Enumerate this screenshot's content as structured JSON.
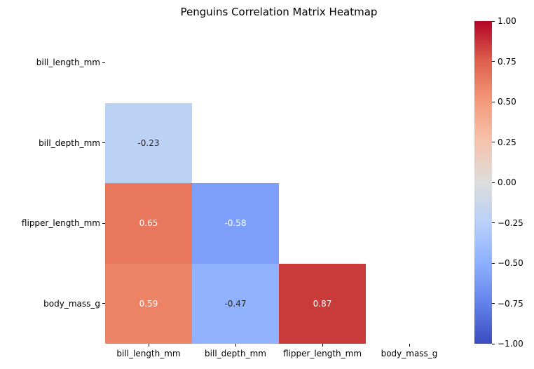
{
  "chart_data": {
    "type": "heatmap",
    "title": "Penguins Correlation Matrix Heatmap",
    "colormap": "coolwarm",
    "vmin": -1,
    "vmax": 1,
    "mask": "upper-triangle-and-diagonal",
    "grid": false,
    "variables": [
      "bill_length_mm",
      "bill_depth_mm",
      "flipper_length_mm",
      "body_mass_g"
    ],
    "matrix": [
      [
        null,
        null,
        null,
        null
      ],
      [
        -0.23,
        null,
        null,
        null
      ],
      [
        0.65,
        -0.58,
        null,
        null
      ],
      [
        0.59,
        -0.47,
        0.87,
        null
      ]
    ],
    "cells": [
      {
        "row": 1,
        "col": 0,
        "row_var": "bill_depth_mm",
        "col_var": "bill_length_mm",
        "value": -0.23,
        "label": "-0.23",
        "color": "#bcd2f4",
        "text_color": "#262626"
      },
      {
        "row": 2,
        "col": 0,
        "row_var": "flipper_length_mm",
        "col_var": "bill_length_mm",
        "value": 0.65,
        "label": "0.65",
        "color": "#e8775d",
        "text_color": "#ffffff"
      },
      {
        "row": 2,
        "col": 1,
        "row_var": "flipper_length_mm",
        "col_var": "bill_depth_mm",
        "value": -0.58,
        "label": "-0.58",
        "color": "#7d9ff9",
        "text_color": "#ffffff"
      },
      {
        "row": 3,
        "col": 0,
        "row_var": "body_mass_g",
        "col_var": "bill_length_mm",
        "value": 0.59,
        "label": "0.59",
        "color": "#ed8366",
        "text_color": "#ffffff"
      },
      {
        "row": 3,
        "col": 1,
        "row_var": "body_mass_g",
        "col_var": "bill_depth_mm",
        "value": -0.47,
        "label": "-0.47",
        "color": "#91b2fe",
        "text_color": "#262626"
      },
      {
        "row": 3,
        "col": 2,
        "row_var": "body_mass_g",
        "col_var": "flipper_length_mm",
        "value": 0.87,
        "label": "0.87",
        "color": "#c83b38",
        "text_color": "#ffffff"
      }
    ],
    "colorbar": {
      "position": "right",
      "ticks": [
        {
          "label": "1.00",
          "value": 1.0
        },
        {
          "label": "0.75",
          "value": 0.75
        },
        {
          "label": "0.50",
          "value": 0.5
        },
        {
          "label": "0.25",
          "value": 0.25
        },
        {
          "label": "0.00",
          "value": 0.0
        },
        {
          "label": "−0.25",
          "value": -0.25
        },
        {
          "label": "−0.50",
          "value": -0.5
        },
        {
          "label": "−0.75",
          "value": -0.75
        },
        {
          "label": "−1.00",
          "value": -1.0
        }
      ],
      "gradient_stops_low_to_high": [
        "#3b4cc0",
        "#6282ea",
        "#8db0fe",
        "#b8d0f9",
        "#dddddd",
        "#f5c4ad",
        "#f49a7b",
        "#de604d",
        "#b40426"
      ]
    }
  }
}
